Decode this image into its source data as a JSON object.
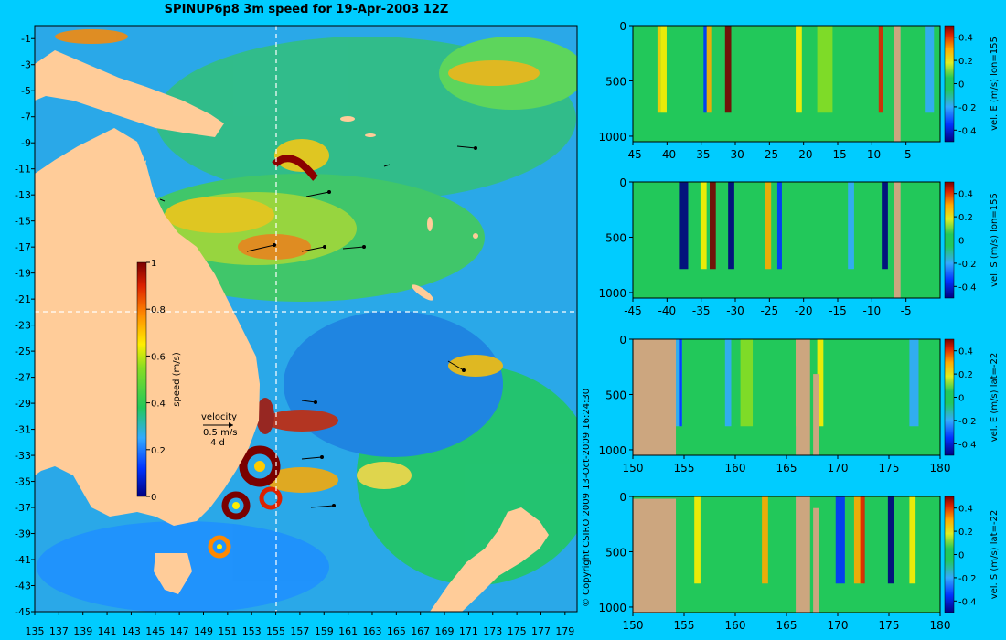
{
  "title": "SPINUP6p8 3m speed for 19-Apr-2003 12Z",
  "copyright": "© Copyright CSIRO 2009  13-Oct-2009 16:24:30",
  "colors": {
    "background": "#00ccff",
    "land": "#ffcc99",
    "section_land": "#cca67f",
    "ocean_low": "#1e8fff",
    "ocean_mid": "#22c85a",
    "crosshair": "#ffffff"
  },
  "chart_data": [
    {
      "type": "heatmap",
      "name": "map",
      "title": "SPINUP6p8 3m speed for 19-Apr-2003 12Z",
      "x_ticks": [
        "135",
        "137",
        "139",
        "141",
        "143",
        "145",
        "147",
        "149",
        "151",
        "153",
        "155",
        "157",
        "159",
        "161",
        "163",
        "165",
        "167",
        "169",
        "171",
        "173",
        "175",
        "177",
        "179"
      ],
      "y_ticks": [
        "-1",
        "-3",
        "-5",
        "-7",
        "-9",
        "-11",
        "-13",
        "-15",
        "-17",
        "-19",
        "-21",
        "-23",
        "-25",
        "-27",
        "-29",
        "-31",
        "-33",
        "-35",
        "-37",
        "-39",
        "-41",
        "-43",
        "-45"
      ],
      "xlim": [
        135,
        180
      ],
      "ylim": [
        -45,
        0
      ],
      "crosshair": {
        "lon": 155,
        "lat": -22
      },
      "colorbar": {
        "label": "speed (m/s)",
        "ticks": [
          "1",
          "0.8",
          "0.6",
          "0.4",
          "0.2",
          "0"
        ],
        "range": [
          0,
          1
        ]
      },
      "velocity_key": {
        "label": "velocity",
        "scale": "0.5 m/s",
        "duration": "4 d"
      }
    },
    {
      "type": "heatmap",
      "name": "section-1",
      "x_ticks": [
        "-45",
        "-40",
        "-35",
        "-30",
        "-25",
        "-20",
        "-15",
        "-10",
        "-5"
      ],
      "y_ticks": [
        "0",
        "500",
        "1000"
      ],
      "xlim": [
        -45,
        0
      ],
      "ylim": [
        1050,
        0
      ],
      "colorbar": {
        "label": "vel. E (m/s) lon=155",
        "ticks": [
          "0.4",
          "0.2",
          "0",
          "-0.2",
          "-0.4"
        ],
        "range": [
          -0.5,
          0.5
        ]
      }
    },
    {
      "type": "heatmap",
      "name": "section-2",
      "x_ticks": [
        "-45",
        "-40",
        "-35",
        "-30",
        "-25",
        "-20",
        "-15",
        "-10",
        "-5"
      ],
      "y_ticks": [
        "0",
        "500",
        "1000"
      ],
      "xlim": [
        -45,
        0
      ],
      "ylim": [
        1050,
        0
      ],
      "colorbar": {
        "label": "vel. S (m/s) lon=155",
        "ticks": [
          "0.4",
          "0.2",
          "0",
          "-0.2",
          "-0.4"
        ],
        "range": [
          -0.5,
          0.5
        ]
      }
    },
    {
      "type": "heatmap",
      "name": "section-3",
      "x_ticks": [
        "150",
        "155",
        "160",
        "165",
        "170",
        "175",
        "180"
      ],
      "y_ticks": [
        "0",
        "500",
        "1000"
      ],
      "xlim": [
        150,
        180
      ],
      "ylim": [
        1050,
        0
      ],
      "colorbar": {
        "label": "vel. E (m/s) lat=-22",
        "ticks": [
          "0.4",
          "0.2",
          "0",
          "-0.2",
          "-0.4"
        ],
        "range": [
          -0.5,
          0.5
        ]
      }
    },
    {
      "type": "heatmap",
      "name": "section-4",
      "x_ticks": [
        "150",
        "155",
        "160",
        "165",
        "170",
        "175",
        "180"
      ],
      "y_ticks": [
        "0",
        "500",
        "1000"
      ],
      "xlim": [
        150,
        180
      ],
      "ylim": [
        1050,
        0
      ],
      "colorbar": {
        "label": "vel. S (m/s) lat=-22",
        "ticks": [
          "0.4",
          "0.2",
          "0",
          "-0.2",
          "-0.4"
        ],
        "range": [
          -0.5,
          0.5
        ]
      }
    }
  ]
}
